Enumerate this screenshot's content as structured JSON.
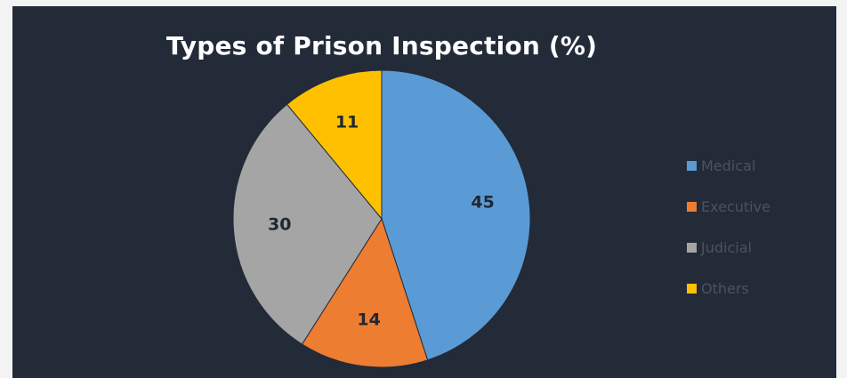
{
  "chart_data": {
    "type": "pie",
    "title": "Types of Prison Inspection (%)",
    "categories": [
      "Medical",
      "Executive",
      "Judicial",
      "Others"
    ],
    "values": [
      45,
      14,
      30,
      11
    ],
    "colors": [
      "#5b9bd5",
      "#ed7d31",
      "#a5a5a5",
      "#ffc000"
    ],
    "legend_position": "right"
  },
  "background_color": "#232b38"
}
